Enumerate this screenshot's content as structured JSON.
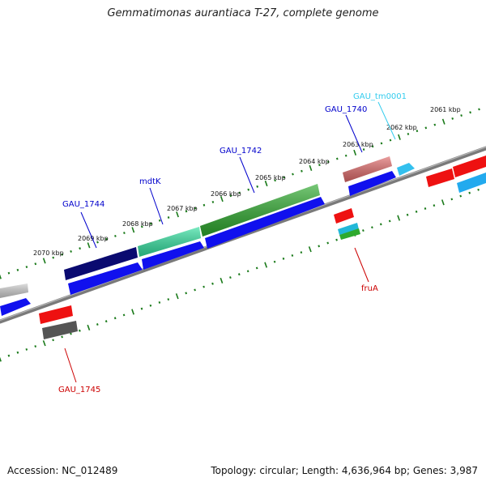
{
  "title": "Gemmatimonas aurantiaca T-27, complete genome",
  "footer": {
    "accession": "Accession: NC_012489",
    "summary": "Topology: circular; Length: 4,636,964 bp; Genes: 3,987"
  },
  "ticks": [
    "2070 kbp",
    "2069 kbp",
    "2068 kbp",
    "2067 kbp",
    "2066 kbp",
    "2065 kbp",
    "2064 kbp",
    "2063 kbp",
    "2062 kbp",
    "2061 kbp"
  ],
  "genes": [
    {
      "id": "GAU_1744",
      "color": "#0000cc"
    },
    {
      "id": "mdtK",
      "color": "#0000cc"
    },
    {
      "id": "GAU_1742",
      "color": "#0000cc"
    },
    {
      "id": "GAU_1740",
      "color": "#0000cc"
    },
    {
      "id": "GAU_tm0001",
      "color": "#33ccee"
    },
    {
      "id": "fruA",
      "color": "#cc0000"
    },
    {
      "id": "GAU_1745",
      "color": "#cc0000"
    }
  ]
}
